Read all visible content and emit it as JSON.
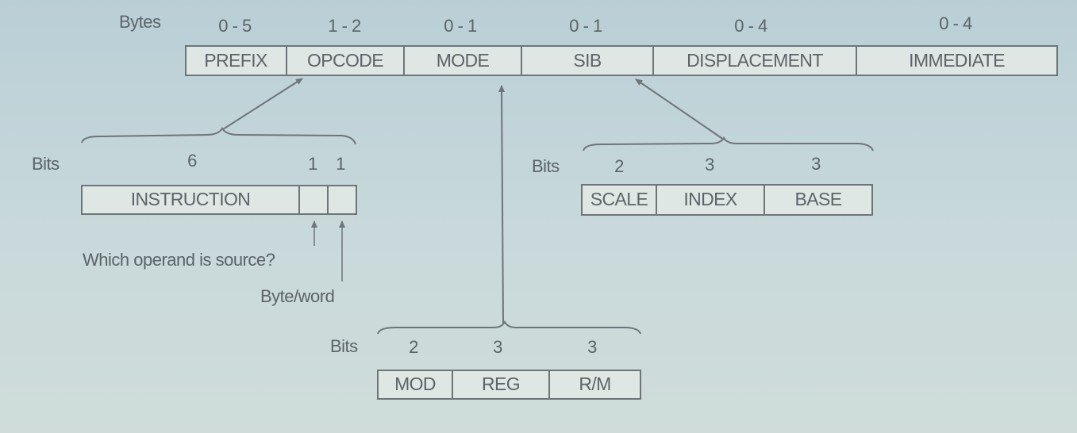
{
  "instruction_format": {
    "bytes_label": "Bytes",
    "fields": [
      {
        "name": "PREFIX",
        "bytes": "0 - 5"
      },
      {
        "name": "OPCODE",
        "bytes": "1 - 2"
      },
      {
        "name": "MODE",
        "bytes": "0 - 1"
      },
      {
        "name": "SIB",
        "bytes": "0 - 1"
      },
      {
        "name": "DISPLACEMENT",
        "bytes": "0 - 4"
      },
      {
        "name": "IMMEDIATE",
        "bytes": "0 - 4"
      }
    ]
  },
  "opcode_detail": {
    "bits_label": "Bits",
    "bit_widths": [
      "6",
      "1",
      "1"
    ],
    "fields": [
      "INSTRUCTION",
      "",
      ""
    ],
    "notes": [
      "Which operand is source?",
      "Byte/word"
    ]
  },
  "sib_detail": {
    "bits_label": "Bits",
    "bit_widths": [
      "2",
      "3",
      "3"
    ],
    "fields": [
      "SCALE",
      "INDEX",
      "BASE"
    ]
  },
  "mode_detail": {
    "bits_label": "Bits",
    "bit_widths": [
      "2",
      "3",
      "3"
    ],
    "fields": [
      "MOD",
      "REG",
      "R/M"
    ]
  },
  "colors": {
    "background": "#c4d6d9",
    "box_fill": "#dfe7e4",
    "line": "#6d7579",
    "text": "#5b6468"
  }
}
